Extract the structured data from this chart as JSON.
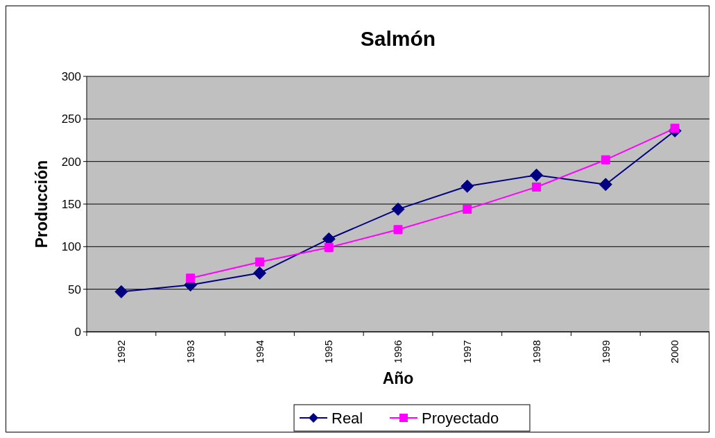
{
  "chart_data": {
    "type": "line",
    "title": "Salmón",
    "xlabel": "Año",
    "ylabel": "Producción",
    "categories": [
      "1992",
      "1993",
      "1994",
      "1995",
      "1996",
      "1997",
      "1998",
      "1999",
      "2000"
    ],
    "series": [
      {
        "name": "Real",
        "color": "#000080",
        "marker": "diamond",
        "values": [
          47,
          55,
          69,
          109,
          144,
          171,
          184,
          173,
          236
        ]
      },
      {
        "name": "Proyectado",
        "color": "#ff00ff",
        "marker": "square",
        "values": [
          null,
          63,
          82,
          99,
          120,
          144,
          170,
          202,
          239
        ]
      }
    ],
    "ylim": [
      0,
      300
    ],
    "yticks": [
      0,
      50,
      100,
      150,
      200,
      250,
      300
    ],
    "grid": "y",
    "legend": "bottom",
    "line_style": "solid"
  }
}
